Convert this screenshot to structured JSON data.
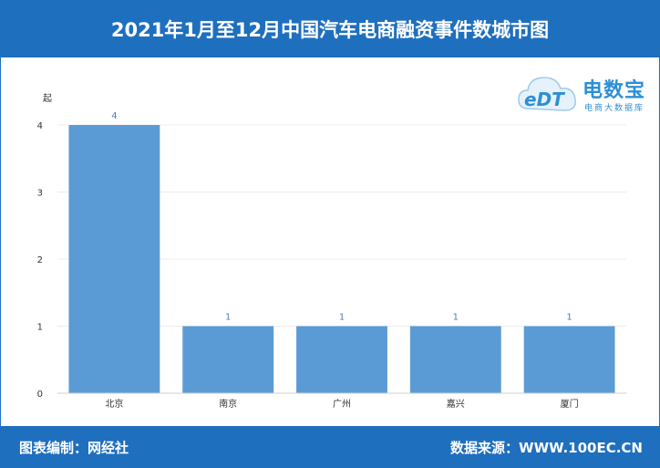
{
  "title": "2021年1月至12月中国汽车电商融资事件数城市图",
  "footer": {
    "left": "图表编制：网经社",
    "right": "数据来源：WWW.100EC.CN"
  },
  "logo": {
    "mark": "eDT",
    "wordmark": "电数宝",
    "sub": "电商大数据库"
  },
  "colors": {
    "bar": "#5b9bd5",
    "header": "#1f6fbf",
    "label": "#4a7fb5"
  },
  "chart_data": {
    "type": "bar",
    "unit_label": "起",
    "categories": [
      "北京",
      "南京",
      "广州",
      "嘉兴",
      "厦门"
    ],
    "values": [
      4,
      1,
      1,
      1,
      1
    ],
    "ylim": [
      0,
      4
    ],
    "yticks": [
      0,
      1,
      2,
      3,
      4
    ],
    "grid": true
  }
}
